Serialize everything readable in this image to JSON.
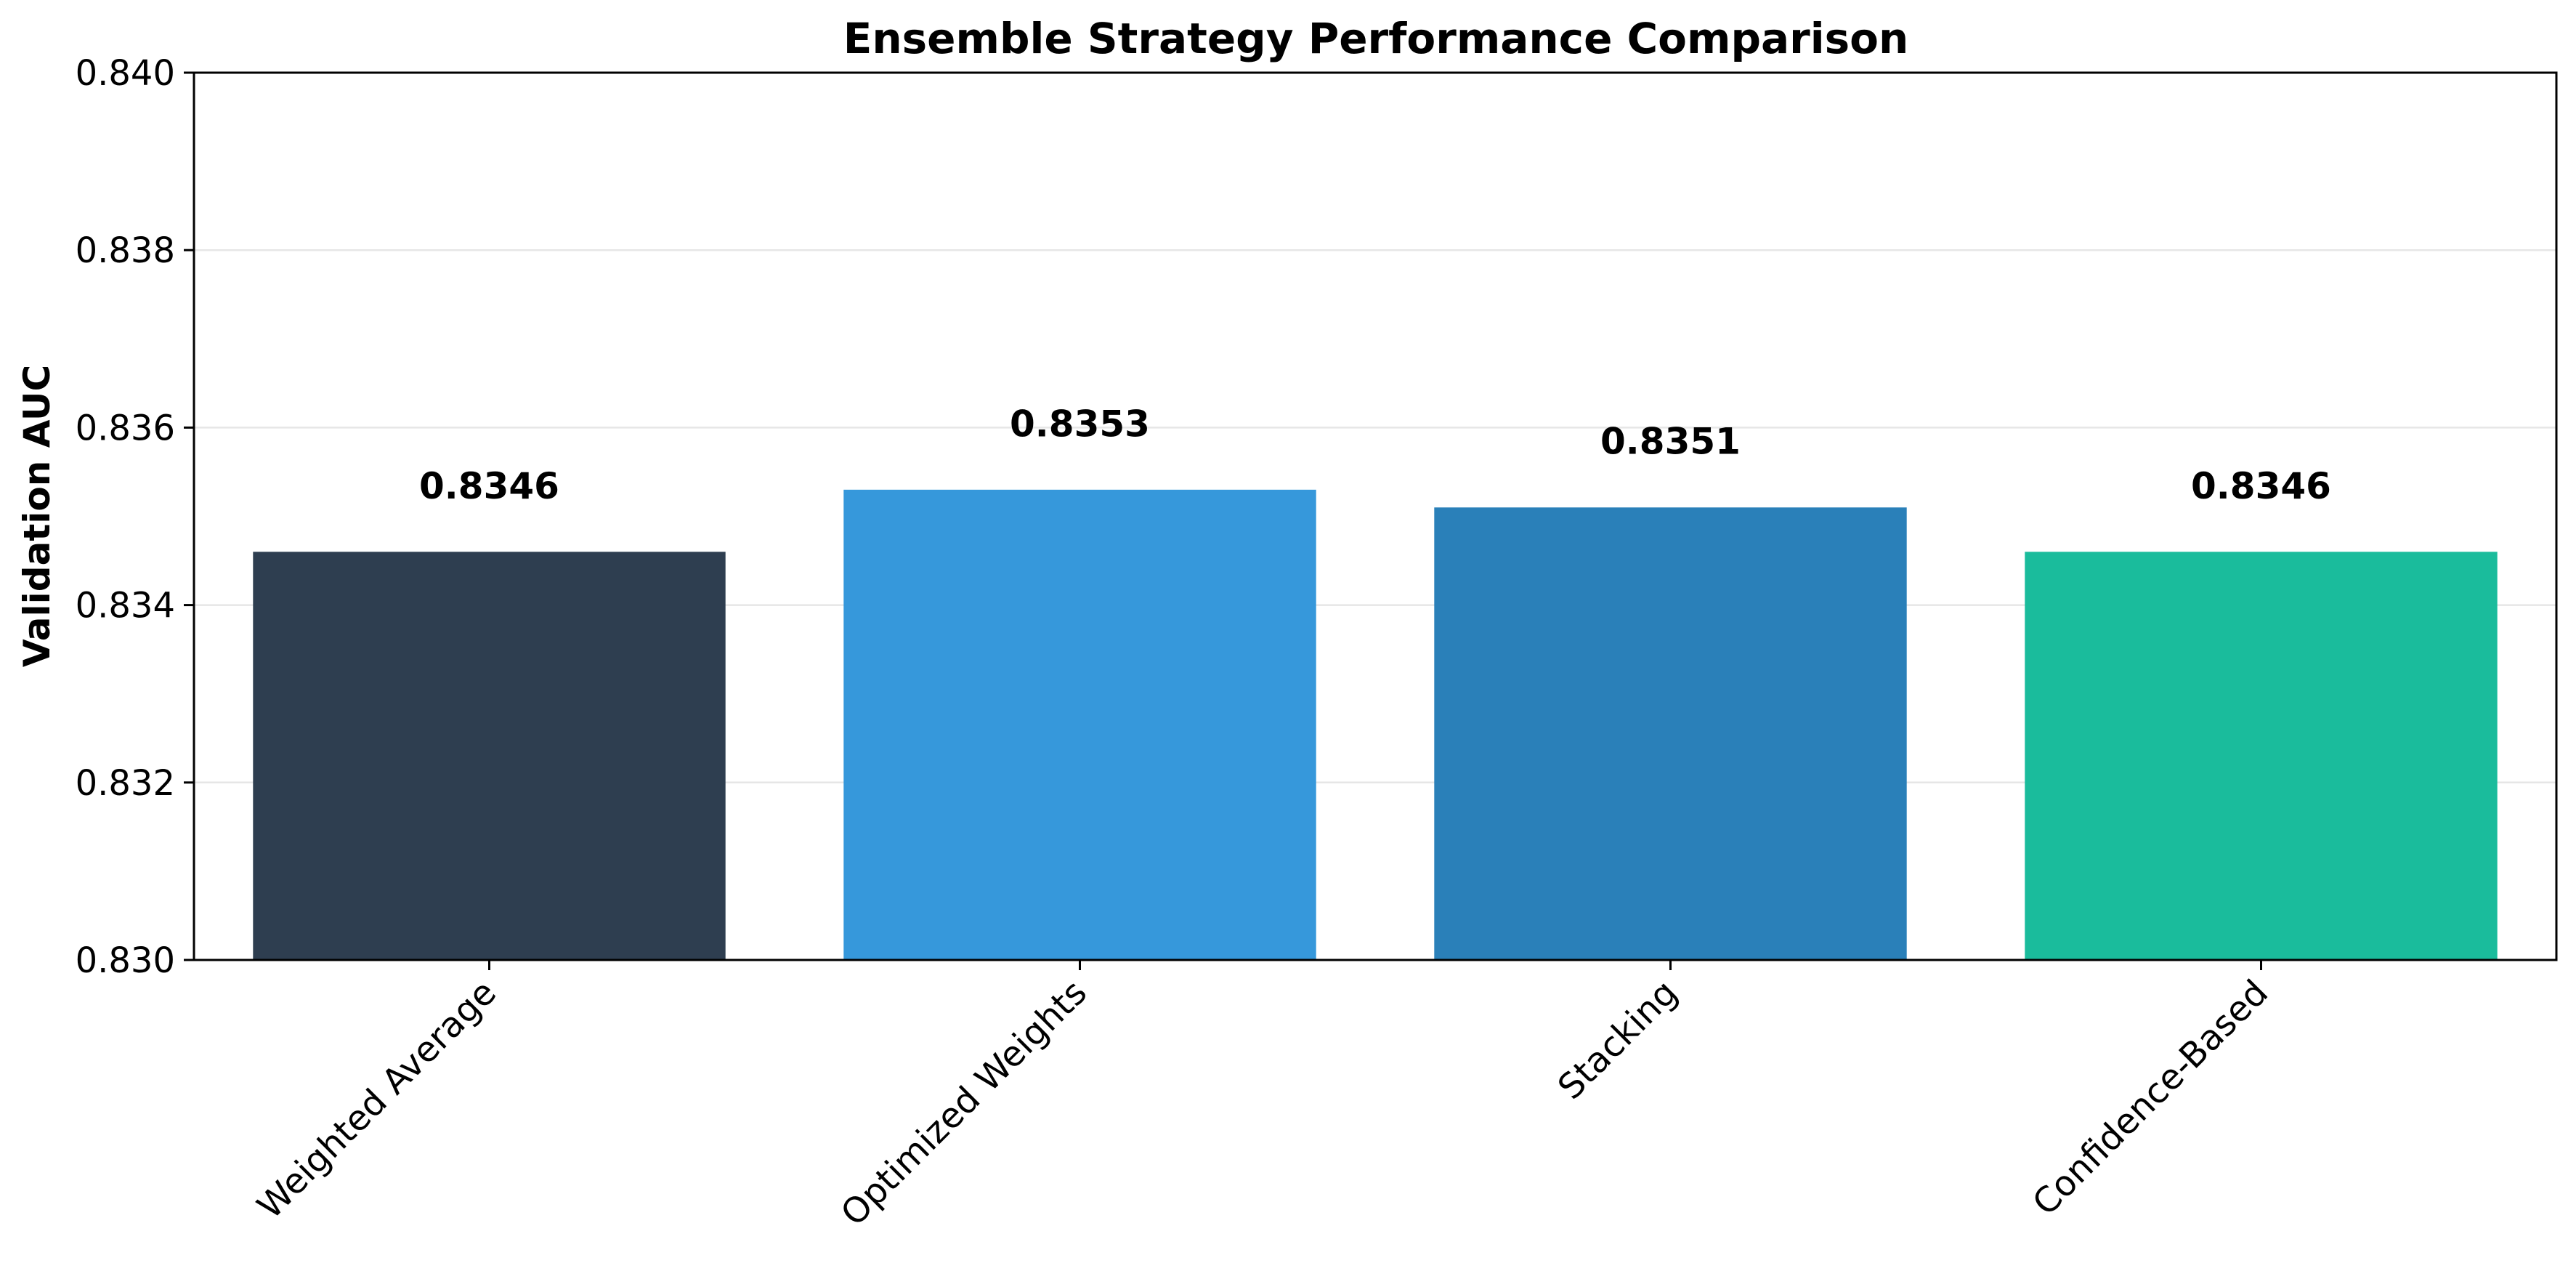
{
  "chart_data": {
    "type": "bar",
    "title": "Ensemble Strategy Performance Comparison",
    "xlabel": "",
    "ylabel": "Validation AUC",
    "categories": [
      "Weighted Average",
      "Optimized Weights",
      "Stacking",
      "Confidence-Based"
    ],
    "values": [
      0.8346,
      0.8353,
      0.8351,
      0.8346
    ],
    "data_labels": [
      "0.8346",
      "0.8353",
      "0.8351",
      "0.8346"
    ],
    "colors": [
      "#2e3e50",
      "#3698db",
      "#2a80b9",
      "#1abc9c"
    ],
    "ylim": [
      0.83,
      0.84
    ],
    "yticks": [
      0.83,
      0.832,
      0.834,
      0.836,
      0.838,
      0.84
    ],
    "ytick_labels": [
      "0.830",
      "0.832",
      "0.834",
      "0.836",
      "0.838",
      "0.840"
    ],
    "grid": "y",
    "legend": "none"
  }
}
